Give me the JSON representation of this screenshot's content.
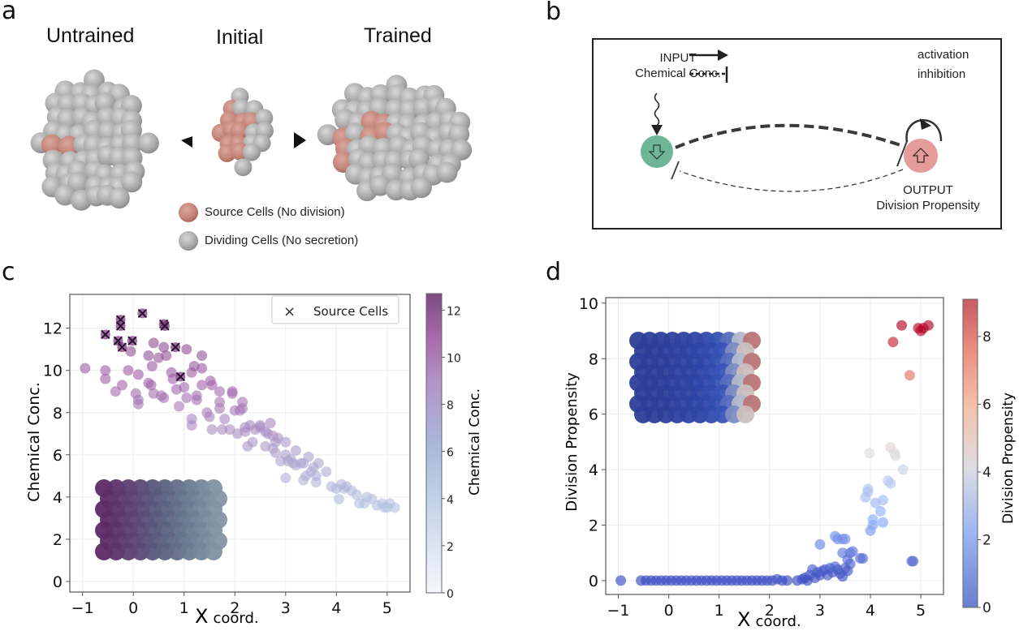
{
  "panel_a": {
    "letter": "a",
    "headers": [
      "Untrained",
      "Initial",
      "Trained"
    ],
    "legend": [
      {
        "label": "Source Cells (No division)",
        "color": "#c98a80"
      },
      {
        "label": "Dividing Cells (No secretion)",
        "color": "#b4b4b4"
      }
    ]
  },
  "panel_b": {
    "letter": "b",
    "input_label_1": "INPUT",
    "input_label_2": "Chemical Conc.",
    "output_label_1": "OUTPUT",
    "output_label_2": "Division Propensity",
    "legend_activation": "activation",
    "legend_inhibition": "inhibition",
    "input_node_color": "#6fb597",
    "output_node_color": "#e49c98"
  },
  "panel_c": {
    "letter": "c"
  },
  "panel_d": {
    "letter": "d"
  },
  "chart_data": [
    {
      "type": "scatter",
      "title": "",
      "xlabel_big": "X",
      "xlabel_small": "coord.",
      "ylabel": "Chemical Conc.",
      "xlim": [
        -1.25,
        5.45
      ],
      "ylim": [
        -0.5,
        13.6
      ],
      "xticks": [
        -1,
        0,
        1,
        2,
        3,
        4,
        5
      ],
      "yticks": [
        0,
        2,
        4,
        6,
        8,
        10,
        12
      ],
      "xtick_labels": [
        "−1",
        "0",
        "1",
        "2",
        "3",
        "4",
        "5"
      ],
      "ytick_labels": [
        "0",
        "2",
        "4",
        "6",
        "8",
        "10",
        "12"
      ],
      "grid": true,
      "legend": {
        "label": "Source Cells",
        "marker": "x",
        "placement": "top-right"
      },
      "colorbar": {
        "label": "Chemical Conc.",
        "range": [
          0,
          12.7
        ],
        "ticks": [
          0,
          2,
          4,
          6,
          8,
          10,
          12
        ],
        "colormap": "BuPu",
        "colors": [
          "#f5f8fc",
          "#b4c7e3",
          "#ac9ccb",
          "#a15fa8",
          "#7b3c7c"
        ]
      },
      "source_cells": [
        [
          -0.55,
          11.7
        ],
        [
          -0.25,
          12.4
        ],
        [
          -0.25,
          12.1
        ],
        [
          -0.3,
          11.4
        ],
        [
          -0.22,
          11.1
        ],
        [
          0.18,
          12.7
        ],
        [
          0.6,
          12.2
        ],
        [
          0.62,
          12.1
        ],
        [
          -0.02,
          11.4
        ],
        [
          0.83,
          11.1
        ],
        [
          0.93,
          9.7
        ]
      ],
      "points": [
        [
          -0.95,
          10.1
        ],
        [
          -0.55,
          10.0
        ],
        [
          -0.55,
          9.6
        ],
        [
          -0.35,
          9.0
        ],
        [
          -0.22,
          9.3
        ],
        [
          -0.1,
          10.0
        ],
        [
          -0.05,
          10.9
        ],
        [
          0.1,
          9.8
        ],
        [
          0.05,
          8.9
        ],
        [
          0.1,
          8.6
        ],
        [
          0.1,
          8.4
        ],
        [
          0.3,
          10.7
        ],
        [
          0.3,
          9.4
        ],
        [
          0.35,
          9.3
        ],
        [
          0.37,
          10.2
        ],
        [
          0.4,
          11.3
        ],
        [
          0.4,
          8.9
        ],
        [
          0.5,
          10.6
        ],
        [
          0.55,
          8.8
        ],
        [
          0.6,
          8.7
        ],
        [
          0.6,
          11.1
        ],
        [
          0.65,
          10.7
        ],
        [
          0.75,
          9.9
        ],
        [
          0.78,
          9.6
        ],
        [
          0.85,
          9.1
        ],
        [
          0.9,
          8.3
        ],
        [
          1.0,
          9.2
        ],
        [
          1.05,
          11.0
        ],
        [
          1.05,
          8.7
        ],
        [
          1.15,
          9.9
        ],
        [
          1.2,
          10.2
        ],
        [
          1.25,
          8.8
        ],
        [
          1.25,
          8.6
        ],
        [
          1.35,
          10.7
        ],
        [
          1.35,
          10.1
        ],
        [
          1.35,
          9.3
        ],
        [
          1.45,
          8.0
        ],
        [
          1.5,
          7.8
        ],
        [
          1.52,
          9.5
        ],
        [
          1.55,
          9.3
        ],
        [
          1.7,
          9.0
        ],
        [
          1.7,
          8.5
        ],
        [
          1.7,
          8.2
        ],
        [
          1.75,
          7.2
        ],
        [
          1.8,
          7.7
        ],
        [
          1.9,
          7.2
        ],
        [
          1.95,
          8.9
        ],
        [
          1.95,
          9.0
        ],
        [
          2.0,
          8.1
        ],
        [
          2.05,
          7.0
        ],
        [
          2.1,
          8.1
        ],
        [
          2.15,
          8.5
        ],
        [
          2.15,
          8.2
        ],
        [
          2.2,
          7.3
        ],
        [
          2.2,
          7.1
        ],
        [
          2.25,
          6.4
        ],
        [
          2.3,
          7.4
        ],
        [
          2.35,
          6.6
        ],
        [
          2.4,
          7.2
        ],
        [
          2.5,
          7.3
        ],
        [
          2.6,
          6.4
        ],
        [
          2.65,
          7.0
        ],
        [
          2.7,
          7.5
        ],
        [
          2.75,
          6.9
        ],
        [
          2.75,
          6.3
        ],
        [
          2.8,
          6.1
        ],
        [
          2.8,
          6.6
        ],
        [
          2.85,
          6.8
        ],
        [
          2.9,
          5.7
        ],
        [
          3.0,
          6.6
        ],
        [
          3.0,
          6.0
        ],
        [
          3.05,
          5.7
        ],
        [
          3.1,
          5.8
        ],
        [
          3.15,
          5.6
        ],
        [
          3.2,
          6.2
        ],
        [
          3.2,
          5.5
        ],
        [
          3.3,
          5.6
        ],
        [
          3.35,
          5.6
        ],
        [
          3.35,
          4.8
        ],
        [
          3.4,
          5.0
        ],
        [
          3.45,
          5.9
        ],
        [
          3.5,
          5.2
        ],
        [
          3.55,
          5.4
        ],
        [
          3.6,
          5.0
        ],
        [
          3.6,
          4.7
        ],
        [
          3.8,
          5.2
        ],
        [
          3.0,
          4.9
        ],
        [
          1.15,
          7.7
        ],
        [
          1.15,
          7.4
        ],
        [
          1.55,
          7.2
        ],
        [
          2.5,
          7.4
        ],
        [
          2.6,
          7.1
        ],
        [
          3.65,
          5.6
        ],
        [
          3.9,
          4.5
        ],
        [
          4.0,
          4.4
        ],
        [
          4.05,
          3.9
        ],
        [
          4.1,
          4.6
        ],
        [
          4.15,
          4.4
        ],
        [
          4.2,
          4.5
        ],
        [
          4.3,
          4.3
        ],
        [
          4.4,
          4.1
        ],
        [
          4.45,
          3.7
        ],
        [
          4.55,
          3.7
        ],
        [
          4.6,
          4.0
        ],
        [
          4.7,
          3.9
        ],
        [
          4.8,
          3.6
        ],
        [
          4.9,
          3.7
        ],
        [
          5.0,
          3.5
        ],
        [
          5.05,
          3.7
        ],
        [
          5.15,
          3.5
        ],
        [
          4.95,
          3.5
        ]
      ],
      "inset": "3D cell cluster colored by chemical concentration (purple to slate-blue gradient)"
    },
    {
      "type": "scatter",
      "title": "",
      "xlabel_big": "X",
      "xlabel_small": "coord.",
      "ylabel": "Division Propensity",
      "xlim": [
        -1.25,
        5.45
      ],
      "ylim": [
        -0.5,
        10.2
      ],
      "xticks": [
        -1,
        0,
        1,
        2,
        3,
        4,
        5
      ],
      "yticks": [
        0,
        2,
        4,
        6,
        8,
        10
      ],
      "xtick_labels": [
        "−1",
        "0",
        "1",
        "2",
        "3",
        "4",
        "5"
      ],
      "ytick_labels": [
        "0",
        "2",
        "4",
        "6",
        "8",
        "10"
      ],
      "grid": true,
      "colorbar": {
        "label": "Division Propensity",
        "range": [
          0,
          9.1
        ],
        "ticks": [
          0,
          2,
          4,
          6,
          8
        ],
        "colormap": "coolwarm",
        "colors": [
          "#3b4cc0",
          "#8db0fe",
          "#dddddd",
          "#f4987a",
          "#b40426"
        ]
      },
      "points": [
        [
          -0.95,
          0.0
        ],
        [
          -0.55,
          0.0
        ],
        [
          -0.45,
          0.0
        ],
        [
          -0.35,
          0.0
        ],
        [
          -0.25,
          0.0
        ],
        [
          -0.15,
          0.0
        ],
        [
          -0.05,
          0.0
        ],
        [
          0.05,
          0.0
        ],
        [
          0.15,
          0.0
        ],
        [
          0.25,
          0.0
        ],
        [
          0.35,
          0.0
        ],
        [
          0.45,
          0.0
        ],
        [
          0.55,
          0.0
        ],
        [
          0.65,
          0.0
        ],
        [
          0.75,
          0.0
        ],
        [
          0.85,
          0.0
        ],
        [
          0.95,
          0.0
        ],
        [
          1.05,
          0.0
        ],
        [
          1.15,
          0.0
        ],
        [
          1.25,
          0.0
        ],
        [
          1.35,
          0.0
        ],
        [
          1.45,
          0.0
        ],
        [
          1.55,
          0.0
        ],
        [
          1.65,
          0.0
        ],
        [
          1.75,
          0.0
        ],
        [
          1.85,
          0.0
        ],
        [
          1.95,
          0.0
        ],
        [
          2.05,
          0.0
        ],
        [
          2.15,
          0.05
        ],
        [
          2.25,
          0.0
        ],
        [
          2.35,
          0.0
        ],
        [
          2.55,
          0.0
        ],
        [
          2.65,
          0.05
        ],
        [
          2.7,
          0.1
        ],
        [
          2.75,
          0.0
        ],
        [
          2.8,
          0.2
        ],
        [
          2.85,
          0.4
        ],
        [
          2.9,
          0.1
        ],
        [
          2.95,
          0.3
        ],
        [
          3.0,
          0.2
        ],
        [
          3.05,
          0.35
        ],
        [
          3.1,
          0.4
        ],
        [
          3.15,
          0.2
        ],
        [
          3.2,
          0.45
        ],
        [
          3.25,
          0.3
        ],
        [
          3.3,
          0.5
        ],
        [
          3.35,
          0.4
        ],
        [
          3.4,
          0.25
        ],
        [
          3.45,
          0.15
        ],
        [
          3.5,
          0.45
        ],
        [
          3.55,
          0.35
        ],
        [
          3.6,
          0.6
        ],
        [
          3.0,
          1.3
        ],
        [
          3.3,
          1.6
        ],
        [
          3.35,
          1.5
        ],
        [
          3.45,
          1.5
        ],
        [
          3.5,
          1.5
        ],
        [
          3.45,
          1.0
        ],
        [
          3.6,
          1.0
        ],
        [
          3.65,
          1.05
        ],
        [
          3.55,
          0.75
        ],
        [
          3.8,
          0.8
        ],
        [
          3.85,
          0.8
        ],
        [
          3.9,
          3.0
        ],
        [
          3.95,
          3.3
        ],
        [
          3.95,
          3.2
        ],
        [
          4.0,
          1.8
        ],
        [
          4.05,
          2.0
        ],
        [
          4.05,
          2.2
        ],
        [
          4.1,
          2.8
        ],
        [
          4.2,
          2.5
        ],
        [
          4.25,
          2.9
        ],
        [
          4.25,
          2.1
        ],
        [
          4.35,
          3.6
        ],
        [
          4.4,
          3.5
        ],
        [
          4.65,
          4.0
        ],
        [
          3.98,
          4.6
        ],
        [
          4.4,
          4.8
        ],
        [
          4.48,
          4.6
        ],
        [
          4.5,
          4.5
        ],
        [
          4.82,
          0.7
        ],
        [
          4.85,
          0.7
        ],
        [
          4.78,
          7.4
        ],
        [
          4.45,
          8.6
        ],
        [
          4.62,
          9.2
        ],
        [
          4.95,
          9.1
        ],
        [
          5.0,
          9.0
        ],
        [
          5.05,
          9.1
        ],
        [
          5.15,
          9.2
        ]
      ],
      "inset": "3D cell cluster colored by division propensity (mostly blue, with white and red cells on the right edge)"
    }
  ]
}
